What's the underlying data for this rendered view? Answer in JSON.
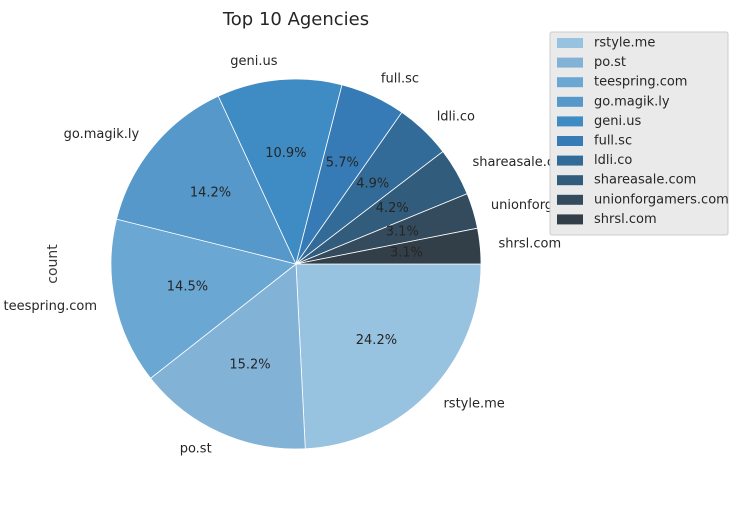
{
  "chart_data": {
    "type": "pie",
    "title": "Top 10 Agencies",
    "ylabel": "count",
    "categories": [
      "rstyle.me",
      "po.st",
      "teespring.com",
      "go.magik.ly",
      "geni.us",
      "full.sc",
      "ldli.co",
      "shareasale.com",
      "unionforgamers.com",
      "shrsl.com"
    ],
    "values": [
      24.2,
      15.2,
      14.5,
      14.2,
      10.9,
      5.7,
      4.9,
      4.2,
      3.1,
      3.1
    ],
    "value_labels": [
      "24.2%",
      "15.2%",
      "14.5%",
      "14.2%",
      "10.9%",
      "5.7%",
      "4.9%",
      "4.2%",
      "3.1%",
      "3.1%"
    ],
    "colors": [
      "#97c2e0",
      "#82b3d7",
      "#6aa7d3",
      "#5598c9",
      "#3f8bc3",
      "#367bb5",
      "#336b98",
      "#325c7c",
      "#344b5e",
      "#323e48"
    ],
    "legend": {
      "placement": "upper-right-outside",
      "entries": [
        "rstyle.me",
        "po.st",
        "teespring.com",
        "go.magik.ly",
        "geni.us",
        "full.sc",
        "ldli.co",
        "shareasale.com",
        "unionforgamers.com",
        "shrsl.com"
      ]
    },
    "start_angle": "0 (3 o'clock), clockwise"
  }
}
